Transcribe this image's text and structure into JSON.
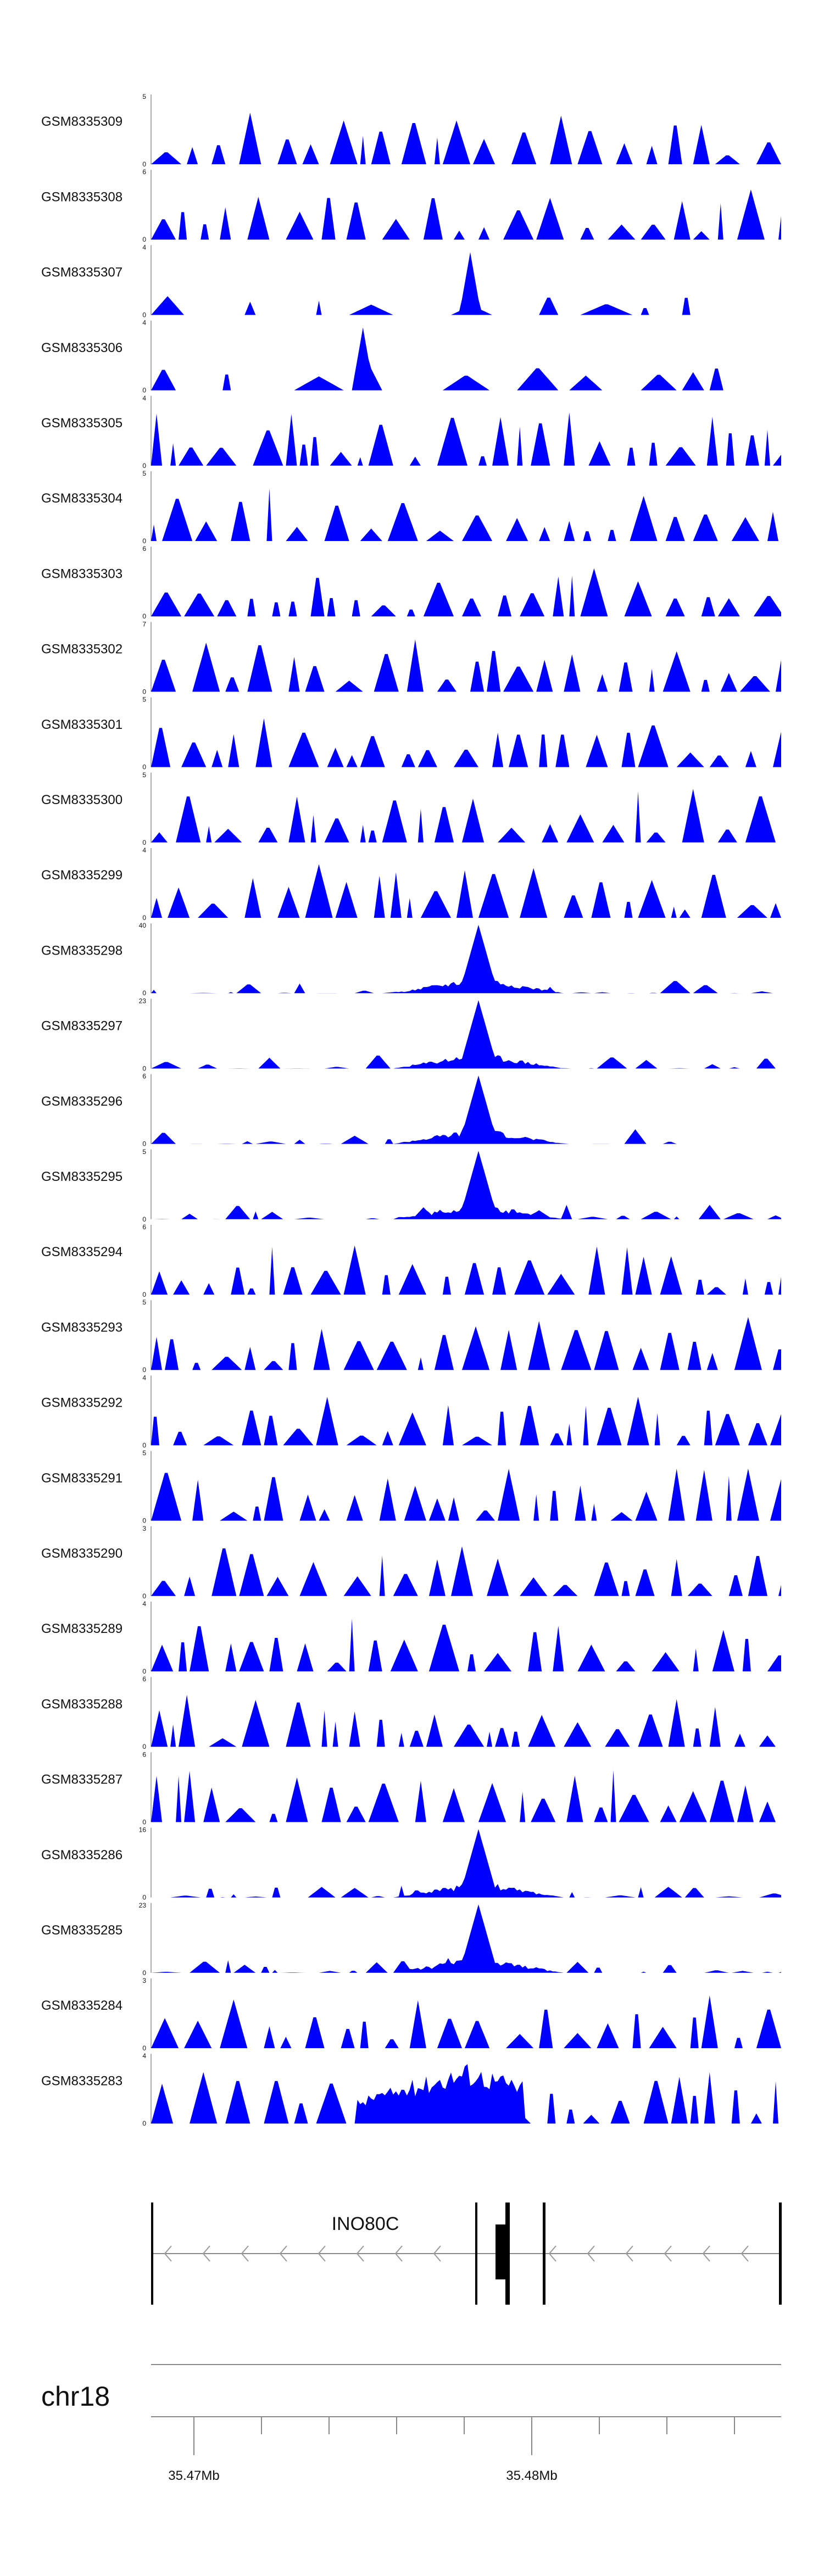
{
  "chart_data": {
    "type": "area",
    "fill_color": "#0000ff",
    "y_min_label": "0",
    "tracks": [
      {
        "name": "GSM8335309",
        "ymax": 5,
        "seed": 11,
        "profile": "flat"
      },
      {
        "name": "GSM8335308",
        "ymax": 6,
        "seed": 12,
        "profile": "flat"
      },
      {
        "name": "GSM8335307",
        "ymax": 4,
        "seed": 13,
        "profile": "sparse"
      },
      {
        "name": "GSM8335306",
        "ymax": 4,
        "seed": 14,
        "profile": "sparse"
      },
      {
        "name": "GSM8335305",
        "ymax": 4,
        "seed": 15,
        "profile": "flat"
      },
      {
        "name": "GSM8335304",
        "ymax": 5,
        "seed": 16,
        "profile": "flat"
      },
      {
        "name": "GSM8335303",
        "ymax": 6,
        "seed": 17,
        "profile": "flat"
      },
      {
        "name": "GSM8335302",
        "ymax": 7,
        "seed": 18,
        "profile": "flat"
      },
      {
        "name": "GSM8335301",
        "ymax": 5,
        "seed": 19,
        "profile": "flat"
      },
      {
        "name": "GSM8335300",
        "ymax": 5,
        "seed": 20,
        "profile": "flat"
      },
      {
        "name": "GSM8335299",
        "ymax": 4,
        "seed": 21,
        "profile": "flat"
      },
      {
        "name": "GSM8335298",
        "ymax": 40,
        "seed": 22,
        "profile": "peak"
      },
      {
        "name": "GSM8335297",
        "ymax": 23,
        "seed": 23,
        "profile": "peak"
      },
      {
        "name": "GSM8335296",
        "ymax": 6,
        "seed": 24,
        "profile": "peakcut"
      },
      {
        "name": "GSM8335295",
        "ymax": 5,
        "seed": 25,
        "profile": "peak"
      },
      {
        "name": "GSM8335294",
        "ymax": 6,
        "seed": 26,
        "profile": "flat"
      },
      {
        "name": "GSM8335293",
        "ymax": 5,
        "seed": 27,
        "profile": "flat"
      },
      {
        "name": "GSM8335292",
        "ymax": 4,
        "seed": 28,
        "profile": "flat"
      },
      {
        "name": "GSM8335291",
        "ymax": 5,
        "seed": 29,
        "profile": "flat"
      },
      {
        "name": "GSM8335290",
        "ymax": 3,
        "seed": 30,
        "profile": "flat"
      },
      {
        "name": "GSM8335289",
        "ymax": 4,
        "seed": 31,
        "profile": "flat"
      },
      {
        "name": "GSM8335288",
        "ymax": 6,
        "seed": 32,
        "profile": "flat"
      },
      {
        "name": "GSM8335287",
        "ymax": 6,
        "seed": 33,
        "profile": "flat"
      },
      {
        "name": "GSM8335286",
        "ymax": 16,
        "seed": 34,
        "profile": "peak"
      },
      {
        "name": "GSM8335285",
        "ymax": 23,
        "seed": 35,
        "profile": "peak"
      },
      {
        "name": "GSM8335284",
        "ymax": 3,
        "seed": 36,
        "profile": "flat"
      },
      {
        "name": "GSM8335283",
        "ymax": 4,
        "seed": 37,
        "profile": "broad"
      }
    ],
    "gene": {
      "name": "INO80C",
      "strand": "-"
    },
    "chromosome": "chr18",
    "coordinate_ticks": [
      "35.47Mb",
      "35.48Mb"
    ]
  }
}
